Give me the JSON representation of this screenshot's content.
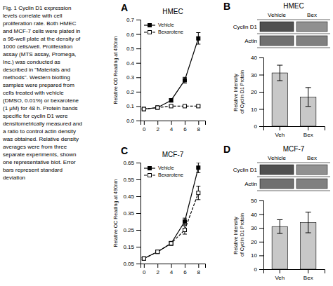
{
  "chart_data": [
    {
      "type": "line",
      "title": "HMEC",
      "ylabel": "Relative OD Reading at 490nm",
      "annotations": [
        "A",
        "Fig. 1  Cyclin D1 expression\nlevels correlate with cell\nproliferation rate. Both HMEC\nand MCF-7 cells were plated in\na 96-well plate at the density of\n1000 cells/well. Proliferation\nassay (MTS assay, Promega,\nInc.) was conducted as\ndescribed in \"Materials and\nmethods\". Western blotting\nsamples were prepared from\ncells treated with vehicle\n(DMSO, 0.01%) or bexarotene\n(1 μM) for 48 h. Protein bands\nspecific for cyclin D1 were\ndensitometrically measured and\na ratio to control actin density\nwas obtained. Relative density\naverages were from three\nseparate experiments, shown\none representative blot. Error\nbars represent standard\ndeviation"
      ],
      "x": [
        0,
        2,
        4,
        6,
        8
      ],
      "xlim": [
        -0.5,
        9
      ],
      "xticks": [
        0,
        2,
        4,
        6,
        8
      ],
      "ylim": [
        0.0,
        0.7
      ],
      "yticks": [
        {
          "value": 0,
          "label": "0.0"
        },
        0.1,
        0.2,
        0.3,
        0.4,
        0.5,
        0.6,
        0.7
      ],
      "legend": "upper left",
      "series": [
        {
          "name": "Vehicle",
          "color": "#000000",
          "marker": "square",
          "line_style": "solid",
          "values": [
            0.08,
            0.09,
            0.14,
            0.28,
            0.57
          ],
          "errors": [
            0.005,
            0.006,
            0.012,
            0.02,
            0.04
          ]
        },
        {
          "name": "Bexarotene",
          "color": "#000000",
          "marker": "open-square",
          "line_style": "dashed",
          "values": [
            0.08,
            0.09,
            0.1,
            0.1,
            0.1
          ],
          "errors": [
            0.005,
            0.006,
            0.007,
            0.006,
            0.007
          ]
        }
      ]
    },
    {
      "type": "bar",
      "title": "HMEC",
      "ylabel": "Relative Intensity of Cyclin D1 Protein",
      "annotations": [
        "B",
        "Vehicle",
        "Bex",
        "Cyclin D1",
        "Actin"
      ],
      "categories": [
        "Veh",
        "Bex"
      ],
      "values": [
        31.0,
        17.0
      ],
      "errors": [
        4.5,
        5.5
      ],
      "color": "#c8c8c8",
      "ylim": [
        0,
        40
      ],
      "yticks": [
        0,
        10,
        20,
        30,
        40
      ]
    },
    {
      "type": "line",
      "title": "MCF-7",
      "ylabel": "Relative OC Reading at 490nm",
      "annotations": [
        "C"
      ],
      "x": [
        0,
        2,
        4,
        6,
        8
      ],
      "xlim": [
        -0.5,
        9
      ],
      "xticks": [
        0,
        2,
        4,
        6,
        8
      ],
      "ylim": [
        0.05,
        0.65
      ],
      "yticks": [
        0.05,
        0.15,
        0.25,
        0.35,
        0.45,
        0.55,
        0.65
      ],
      "legend": "upper left",
      "series": [
        {
          "name": "Vehicle",
          "color": "#000000",
          "marker": "square",
          "line_style": "solid",
          "values": [
            0.08,
            0.12,
            0.17,
            0.3,
            0.62
          ],
          "errors": [
            0.005,
            0.008,
            0.01,
            0.02,
            0.03
          ]
        },
        {
          "name": "Bexarotene",
          "color": "#000000",
          "marker": "open-square",
          "line_style": "dashed",
          "values": [
            0.08,
            0.12,
            0.17,
            0.25,
            0.47
          ],
          "errors": [
            0.005,
            0.008,
            0.012,
            0.025,
            0.04
          ]
        }
      ]
    },
    {
      "type": "bar",
      "title": "MCF-7",
      "ylabel": "Relative Intensity of Cyclin D1 Protein",
      "annotations": [
        "D",
        "Vehicle",
        "Bex",
        "Cyclin D1",
        "Actin"
      ],
      "categories": [
        "Veh",
        "Bex"
      ],
      "values": [
        31.0,
        34.0
      ],
      "errors": [
        5.0,
        7.5
      ],
      "color": "#c8c8c8",
      "ylim": [
        0,
        50
      ],
      "yticks": [
        0,
        10,
        20,
        30,
        40,
        50
      ]
    }
  ]
}
